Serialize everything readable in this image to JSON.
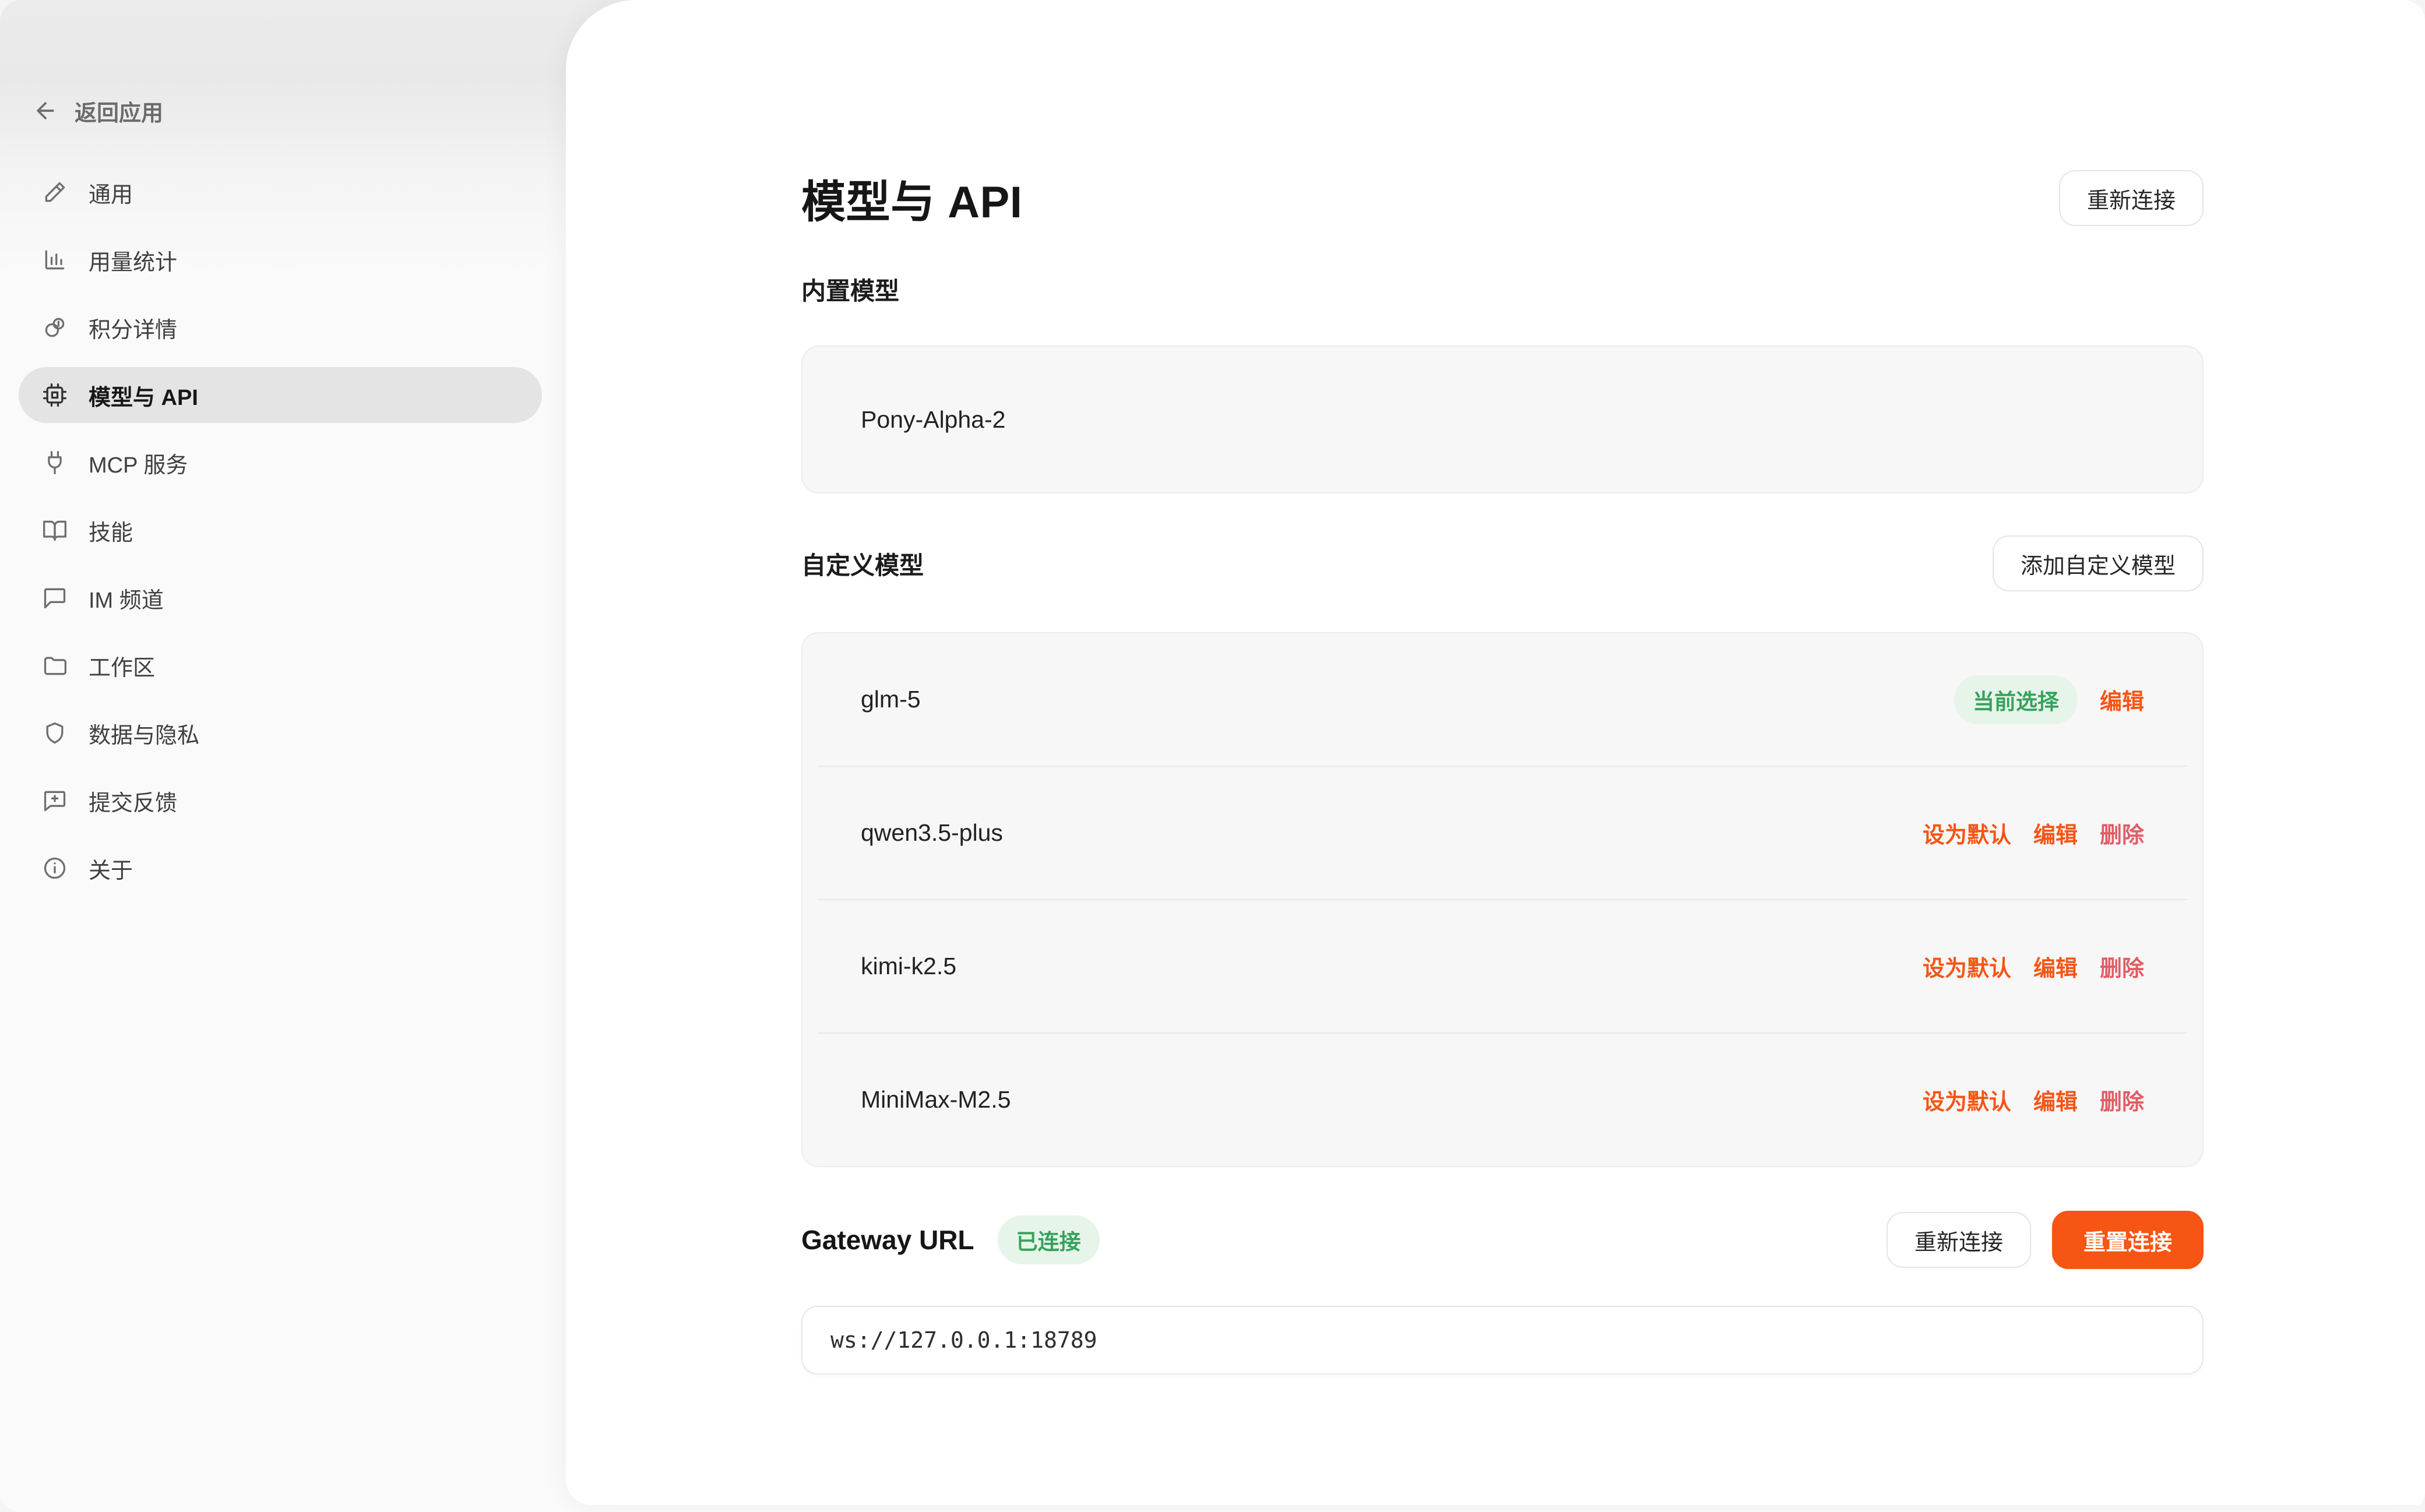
{
  "sidebar": {
    "back_label": "返回应用",
    "items": [
      {
        "label": "通用",
        "icon": "pencil-icon"
      },
      {
        "label": "用量统计",
        "icon": "bar-chart-icon"
      },
      {
        "label": "积分详情",
        "icon": "coins-icon"
      },
      {
        "label": "模型与 API",
        "icon": "chip-icon",
        "active": true
      },
      {
        "label": "MCP 服务",
        "icon": "plug-icon"
      },
      {
        "label": "技能",
        "icon": "book-icon"
      },
      {
        "label": "IM 频道",
        "icon": "chat-icon"
      },
      {
        "label": "工作区",
        "icon": "folder-icon"
      },
      {
        "label": "数据与隐私",
        "icon": "shield-icon"
      },
      {
        "label": "提交反馈",
        "icon": "feedback-icon"
      },
      {
        "label": "关于",
        "icon": "info-icon"
      }
    ]
  },
  "main": {
    "title": "模型与 API",
    "reconnect_button": "重新连接",
    "builtin_section": {
      "heading": "内置模型",
      "models": [
        {
          "name": "Pony-Alpha-2"
        }
      ]
    },
    "custom_section": {
      "heading": "自定义模型",
      "add_button": "添加自定义模型",
      "models": [
        {
          "name": "glm-5",
          "badge": "当前选择",
          "actions": [
            {
              "label": "编辑",
              "style": "orange",
              "name": "edit-link"
            }
          ]
        },
        {
          "name": "qwen3.5-plus",
          "actions": [
            {
              "label": "设为默认",
              "style": "orange",
              "name": "set-default-link"
            },
            {
              "label": "编辑",
              "style": "orange",
              "name": "edit-link"
            },
            {
              "label": "删除",
              "style": "red",
              "name": "delete-link"
            }
          ]
        },
        {
          "name": "kimi-k2.5",
          "actions": [
            {
              "label": "设为默认",
              "style": "orange",
              "name": "set-default-link"
            },
            {
              "label": "编辑",
              "style": "orange",
              "name": "edit-link"
            },
            {
              "label": "删除",
              "style": "red",
              "name": "delete-link"
            }
          ]
        },
        {
          "name": "MiniMax-M2.5",
          "actions": [
            {
              "label": "设为默认",
              "style": "orange",
              "name": "set-default-link"
            },
            {
              "label": "编辑",
              "style": "orange",
              "name": "edit-link"
            },
            {
              "label": "删除",
              "style": "red",
              "name": "delete-link"
            }
          ]
        }
      ]
    },
    "gateway": {
      "label": "Gateway URL",
      "status_badge": "已连接",
      "reconnect_button": "重新连接",
      "reset_button": "重置连接",
      "url_value": "ws://127.0.0.1:18789"
    }
  },
  "colors": {
    "accent_orange": "#f65514",
    "delete_red": "#e25c66",
    "success_green": "#36a35c",
    "success_bg": "#e7f4ea"
  }
}
